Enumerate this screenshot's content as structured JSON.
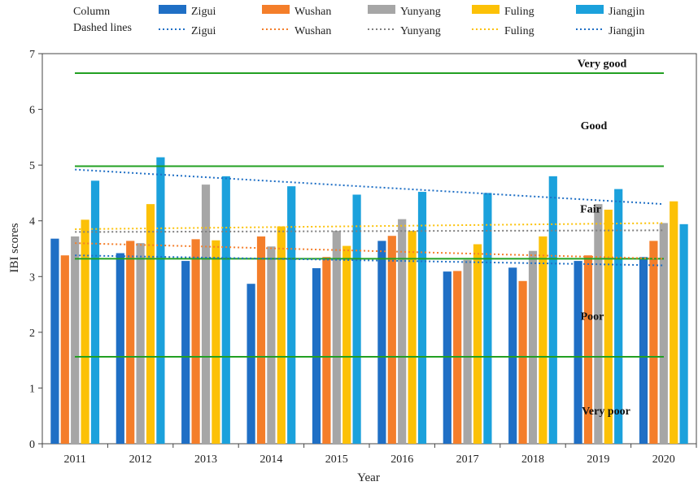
{
  "chart_data": {
    "type": "bar",
    "title": "",
    "xlabel": "Year",
    "ylabel": "IBI scores",
    "ylim": [
      0,
      7
    ],
    "yticks": [
      "0",
      "1",
      "2",
      "3",
      "4",
      "5",
      "6",
      "7"
    ],
    "categories": [
      "2011",
      "2012",
      "2013",
      "2014",
      "2015",
      "2016",
      "2017",
      "2018",
      "2019",
      "2020"
    ],
    "series": [
      {
        "name": "Zigui",
        "color": "#1f6fc5",
        "values": [
          3.68,
          3.42,
          3.28,
          2.87,
          3.15,
          3.64,
          3.09,
          3.16,
          3.28,
          3.35
        ]
      },
      {
        "name": "Wushan",
        "color": "#f47e2a",
        "values": [
          3.38,
          3.64,
          3.67,
          3.72,
          3.35,
          3.73,
          3.1,
          2.92,
          3.38,
          3.64
        ]
      },
      {
        "name": "Yunyang",
        "color": "#a6a6a6",
        "values": [
          3.72,
          3.6,
          4.65,
          3.54,
          3.82,
          4.03,
          3.3,
          3.46,
          4.3,
          3.96
        ]
      },
      {
        "name": "Fuling",
        "color": "#fcc107",
        "values": [
          4.02,
          4.3,
          3.65,
          3.9,
          3.55,
          3.82,
          3.58,
          3.72,
          4.2,
          4.35
        ]
      },
      {
        "name": "Jiangjin",
        "color": "#1ba1dc",
        "values": [
          4.72,
          5.14,
          4.8,
          4.62,
          4.47,
          4.52,
          4.5,
          4.8,
          4.57,
          3.94
        ]
      }
    ],
    "trendlines": [
      {
        "name": "Zigui",
        "color": "#1f6fc5",
        "start": 3.38,
        "end": 3.2
      },
      {
        "name": "Wushan",
        "color": "#f47e2a",
        "start": 3.6,
        "end": 3.32
      },
      {
        "name": "Yunyang",
        "color": "#7f7f7f",
        "start": 3.8,
        "end": 3.83
      },
      {
        "name": "Fuling",
        "color": "#fcc107",
        "start": 3.85,
        "end": 3.96
      },
      {
        "name": "Jiangjin",
        "color": "#1f6fc5",
        "start": 4.92,
        "end": 4.3
      }
    ],
    "thresholds": [
      {
        "value": 6.65,
        "color": "#22a022"
      },
      {
        "value": 4.98,
        "color": "#22a022"
      },
      {
        "value": 3.32,
        "color": "#22a022"
      },
      {
        "value": 1.56,
        "color": "#22a022"
      }
    ],
    "bands": [
      {
        "label": "Very good",
        "value": 6.83
      },
      {
        "label": "Good",
        "value": 5.72
      },
      {
        "label": "Fair",
        "value": 4.22
      },
      {
        "label": "Poor",
        "value": 2.3
      },
      {
        "label": "Very poor",
        "value": 0.6
      }
    ],
    "legend": {
      "column_label": "Column",
      "dashed_label": "Dashed lines",
      "placement": "top"
    }
  }
}
